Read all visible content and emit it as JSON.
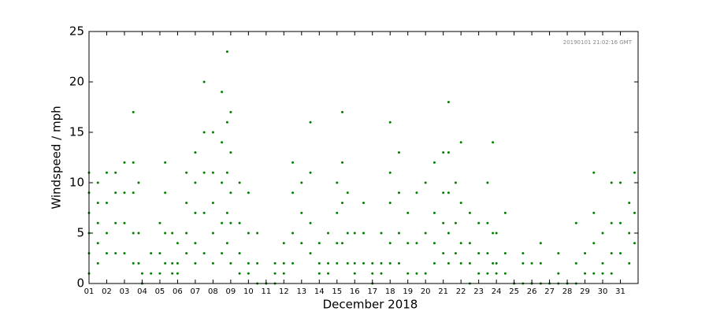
{
  "chart_data": {
    "type": "scatter",
    "annotation": "20190101 21:02:16 GMT",
    "xlabel": "December 2018",
    "ylabel": "Windspeed / mph",
    "color": "#007f00",
    "xlim": [
      1,
      32
    ],
    "ylim": [
      0,
      25
    ],
    "yticks": [
      0,
      5,
      10,
      15,
      20,
      25
    ],
    "xticks": [
      {
        "value": 1,
        "label": "01"
      },
      {
        "value": 2,
        "label": "02"
      },
      {
        "value": 3,
        "label": "03"
      },
      {
        "value": 4,
        "label": "04"
      },
      {
        "value": 5,
        "label": "05"
      },
      {
        "value": 6,
        "label": "06"
      },
      {
        "value": 7,
        "label": "07"
      },
      {
        "value": 8,
        "label": "08"
      },
      {
        "value": 9,
        "label": "09"
      },
      {
        "value": 10,
        "label": "10"
      },
      {
        "value": 11,
        "label": "11"
      },
      {
        "value": 12,
        "label": "12"
      },
      {
        "value": 13,
        "label": "13"
      },
      {
        "value": 14,
        "label": "14"
      },
      {
        "value": 15,
        "label": "15"
      },
      {
        "value": 16,
        "label": "16"
      },
      {
        "value": 17,
        "label": "17"
      },
      {
        "value": 18,
        "label": "18"
      },
      {
        "value": 19,
        "label": "19"
      },
      {
        "value": 20,
        "label": "20"
      },
      {
        "value": 21,
        "label": "21"
      },
      {
        "value": 22,
        "label": "22"
      },
      {
        "value": 23,
        "label": "23"
      },
      {
        "value": 24,
        "label": "24"
      },
      {
        "value": 25,
        "label": "25"
      },
      {
        "value": 26,
        "label": "26"
      },
      {
        "value": 27,
        "label": "27"
      },
      {
        "value": 28,
        "label": "28"
      },
      {
        "value": 29,
        "label": "29"
      },
      {
        "value": 30,
        "label": "30"
      },
      {
        "value": 31,
        "label": "31"
      }
    ],
    "x": [
      1,
      1,
      1,
      1,
      1,
      1,
      1.5,
      1.5,
      1.5,
      1.5,
      1.5,
      2,
      2,
      2,
      2,
      2.5,
      2.5,
      2.5,
      2.5,
      3,
      3,
      3,
      3,
      3.5,
      3.5,
      3.5,
      3.5,
      3.5,
      3.8,
      3.8,
      3.8,
      4,
      4,
      4.5,
      4.5,
      5,
      5,
      5,
      5.3,
      5.3,
      5.3,
      5.3,
      5.7,
      5.7,
      5.7,
      6,
      6,
      6,
      6.5,
      6.5,
      6.5,
      6.5,
      7,
      7,
      7,
      7,
      7,
      7.5,
      7.5,
      7.5,
      7.5,
      7.5,
      8,
      8,
      8,
      8,
      8,
      8.5,
      8.5,
      8.5,
      8.5,
      8.5,
      8.8,
      8.8,
      8.8,
      8.8,
      8.8,
      9,
      9,
      9,
      9,
      9,
      9.5,
      9.5,
      9.5,
      9.5,
      10,
      10,
      10,
      10,
      10.5,
      10.5,
      10.5,
      11,
      11.5,
      11.5,
      11.5,
      12,
      12,
      12,
      12.5,
      12.5,
      12.5,
      12.5,
      13,
      13,
      13,
      13.5,
      13.5,
      13.5,
      13.5,
      14,
      14,
      14,
      14.5,
      14.5,
      14.5,
      15,
      15,
      15,
      15,
      15.3,
      15.3,
      15.3,
      15.3,
      15.6,
      15.6,
      15.6,
      16,
      16,
      16,
      16.5,
      16.5,
      16.5,
      17,
      17,
      17,
      17.5,
      17.5,
      17.5,
      18,
      18,
      18,
      18,
      18,
      18.5,
      18.5,
      18.5,
      18.5,
      19,
      19,
      19,
      19.5,
      19.5,
      19.5,
      20,
      20,
      20,
      20.5,
      20.5,
      20.5,
      20.5,
      21,
      21,
      21,
      21,
      21.3,
      21.3,
      21.3,
      21.3,
      21.3,
      21.7,
      21.7,
      21.7,
      22,
      22,
      22,
      22,
      22.5,
      22.5,
      22.5,
      22.5,
      23,
      23,
      23,
      23.5,
      23.5,
      23.5,
      23.5,
      23.8,
      23.8,
      23.8,
      24,
      24,
      24,
      24.5,
      24.5,
      24.5,
      25,
      25.5,
      25.5,
      25.5,
      26,
      26,
      26.5,
      26.5,
      26.5,
      27,
      27.5,
      27.5,
      27.5,
      28,
      28.5,
      28.5,
      28.5,
      29,
      29,
      29.5,
      29.5,
      29.5,
      29.5,
      30,
      30,
      30,
      30.5,
      30.5,
      30.5,
      30.5,
      31,
      31,
      31,
      31.5,
      31.5,
      31.5,
      31.8,
      31.8,
      31.8
    ],
    "y": [
      11,
      9,
      7,
      5,
      3,
      1,
      10,
      8,
      6,
      4,
      2,
      11,
      8,
      5,
      3,
      11,
      9,
      6,
      3,
      12,
      9,
      6,
      3,
      17,
      12,
      9,
      5,
      2,
      10,
      5,
      2,
      1,
      0,
      3,
      1,
      6,
      3,
      1,
      12,
      9,
      5,
      2,
      5,
      2,
      1,
      4,
      2,
      1,
      11,
      8,
      5,
      3,
      13,
      10,
      7,
      4,
      2,
      20,
      15,
      11,
      7,
      3,
      15,
      11,
      8,
      5,
      2,
      19,
      14,
      10,
      6,
      3,
      23,
      16,
      11,
      7,
      4,
      17,
      13,
      9,
      6,
      2,
      10,
      6,
      3,
      1,
      9,
      5,
      2,
      1,
      5,
      2,
      0,
      0,
      2,
      1,
      0,
      4,
      2,
      1,
      12,
      9,
      5,
      2,
      10,
      7,
      4,
      16,
      11,
      6,
      3,
      4,
      2,
      1,
      5,
      2,
      1,
      10,
      7,
      4,
      2,
      17,
      12,
      8,
      4,
      9,
      5,
      2,
      5,
      2,
      1,
      8,
      5,
      2,
      2,
      1,
      0,
      5,
      2,
      1,
      16,
      11,
      8,
      4,
      2,
      13,
      9,
      5,
      2,
      7,
      4,
      1,
      9,
      4,
      1,
      10,
      5,
      1,
      12,
      7,
      4,
      2,
      13,
      9,
      6,
      3,
      18,
      13,
      9,
      5,
      2,
      10,
      6,
      3,
      14,
      8,
      4,
      2,
      7,
      4,
      2,
      0,
      6,
      3,
      1,
      10,
      6,
      3,
      1,
      14,
      5,
      2,
      5,
      2,
      1,
      7,
      3,
      1,
      0,
      3,
      2,
      0,
      2,
      0,
      4,
      2,
      0,
      0,
      3,
      1,
      0,
      0,
      6,
      2,
      0,
      3,
      1,
      11,
      7,
      4,
      1,
      5,
      2,
      1,
      10,
      6,
      3,
      1,
      10,
      6,
      3,
      8,
      5,
      2,
      11,
      7,
      4
    ]
  }
}
